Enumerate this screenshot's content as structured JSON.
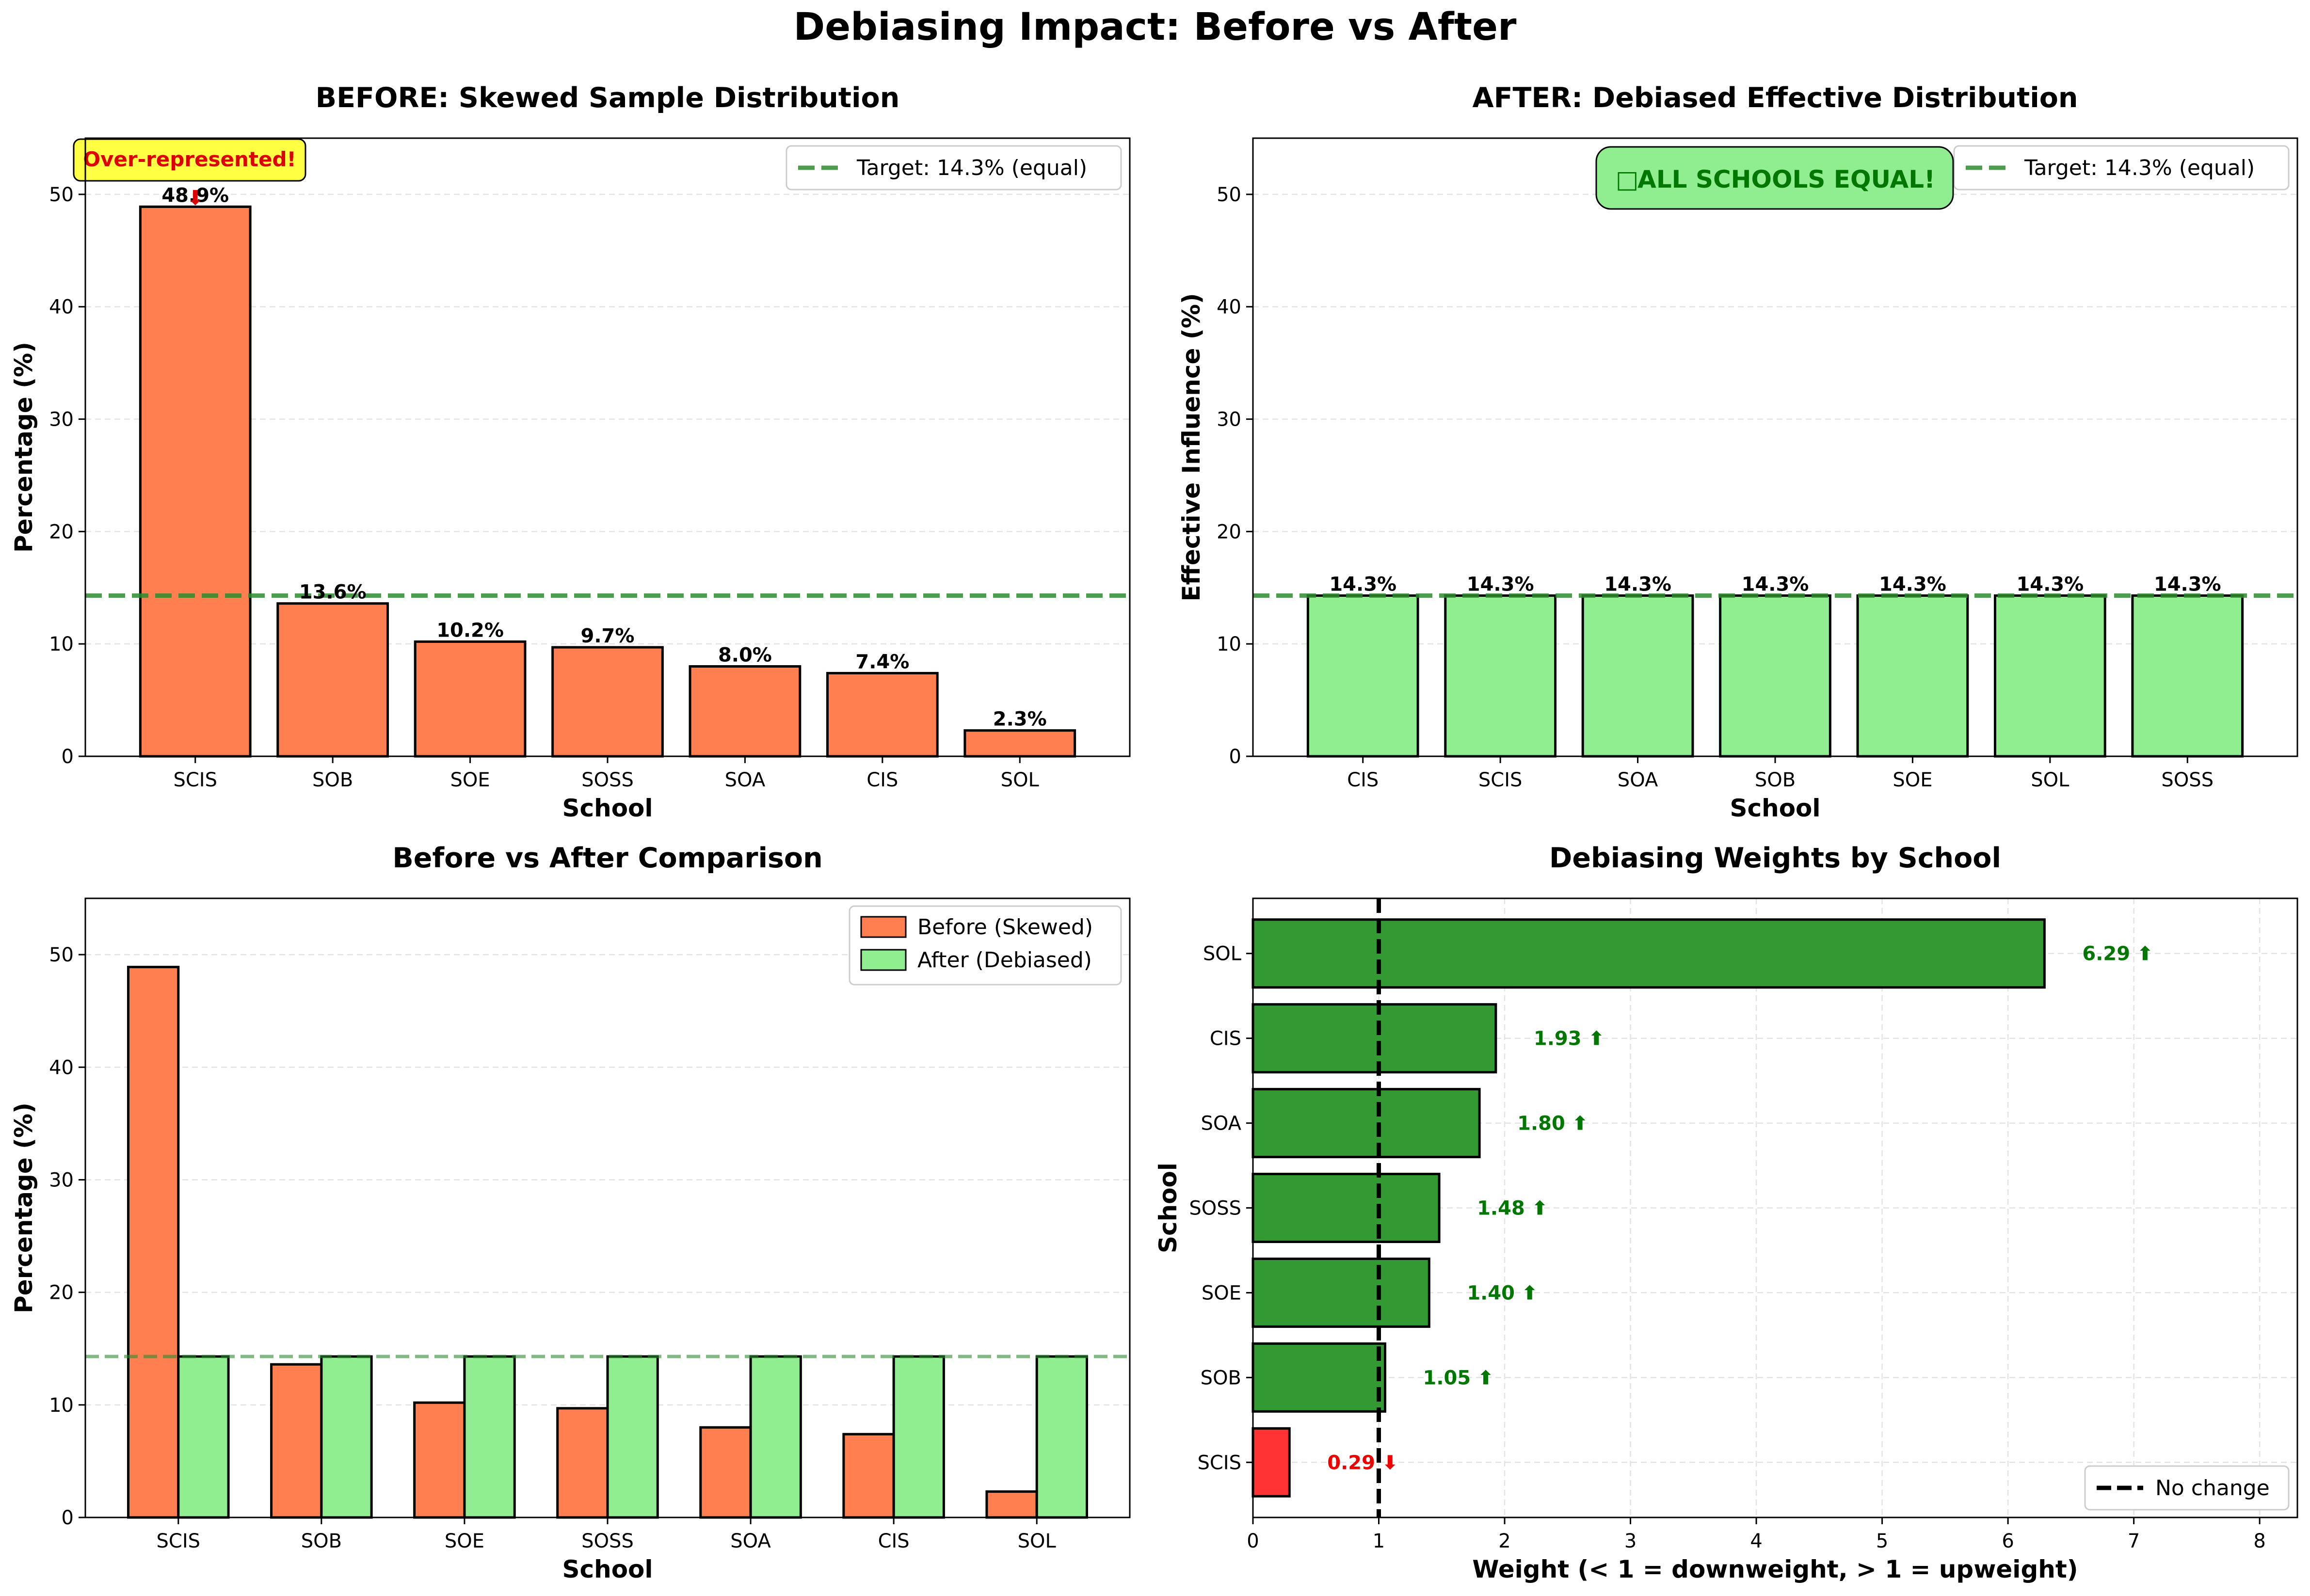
{
  "suptitle": "Debiasing Impact: Before vs After",
  "chart_data": [
    {
      "type": "bar",
      "title": "BEFORE: Skewed Sample Distribution",
      "xlabel": "School",
      "ylabel": "Percentage (%)",
      "ylim": [
        0,
        55
      ],
      "yticks": [
        0,
        10,
        20,
        30,
        40,
        50
      ],
      "categories": [
        "SCIS",
        "SOB",
        "SOE",
        "SOSS",
        "SOA",
        "CIS",
        "SOL"
      ],
      "values": [
        48.9,
        13.6,
        10.2,
        9.7,
        8.0,
        7.4,
        2.3
      ],
      "value_labels": [
        "48.9%",
        "13.6%",
        "10.2%",
        "9.7%",
        "8.0%",
        "7.4%",
        "2.3%"
      ],
      "bar_color": "#ff7f50",
      "target_line": {
        "value": 14.3,
        "label": "Target: 14.3% (equal)",
        "color": "#2e8b2e"
      },
      "legend_position": "top-right",
      "annotation": {
        "text": "Over-represented!",
        "arrow": "⬇",
        "points_to": "SCIS",
        "bg": "#ffff44",
        "color": "#dd0000"
      },
      "grid": "y-dashed"
    },
    {
      "type": "bar",
      "title": "AFTER: Debiased Effective Distribution",
      "xlabel": "School",
      "ylabel": "Effective Influence (%)",
      "ylim": [
        0,
        55
      ],
      "yticks": [
        0,
        10,
        20,
        30,
        40,
        50
      ],
      "categories": [
        "CIS",
        "SCIS",
        "SOA",
        "SOB",
        "SOE",
        "SOL",
        "SOSS"
      ],
      "values": [
        14.3,
        14.3,
        14.3,
        14.3,
        14.3,
        14.3,
        14.3
      ],
      "value_labels": [
        "14.3%",
        "14.3%",
        "14.3%",
        "14.3%",
        "14.3%",
        "14.3%",
        "14.3%"
      ],
      "bar_color": "#90ee90",
      "target_line": {
        "value": 14.3,
        "label": "Target: 14.3% (equal)",
        "color": "#2e8b2e"
      },
      "legend_position": "top-right",
      "badge": {
        "icon": "□",
        "text": "ALL SCHOOLS EQUAL!",
        "bg": "#90ee90",
        "color": "#007700"
      },
      "grid": "y-dashed"
    },
    {
      "type": "bar",
      "title": "Before vs After Comparison",
      "xlabel": "School",
      "ylabel": "Percentage (%)",
      "ylim": [
        0,
        55
      ],
      "yticks": [
        0,
        10,
        20,
        30,
        40,
        50
      ],
      "categories": [
        "SCIS",
        "SOB",
        "SOE",
        "SOSS",
        "SOA",
        "CIS",
        "SOL"
      ],
      "series": [
        {
          "name": "Before (Skewed)",
          "color": "#ff7f50",
          "values": [
            48.9,
            13.6,
            10.2,
            9.7,
            8.0,
            7.4,
            2.3
          ]
        },
        {
          "name": "After (Debiased)",
          "color": "#90ee90",
          "values": [
            14.3,
            14.3,
            14.3,
            14.3,
            14.3,
            14.3,
            14.3
          ]
        }
      ],
      "reference_line": 14.3,
      "legend_position": "top-right",
      "grid": "y-dashed"
    },
    {
      "type": "bar",
      "orientation": "horizontal",
      "title": "Debiasing Weights by School",
      "xlabel": "Weight (< 1 = downweight, > 1 = upweight)",
      "ylabel": "School",
      "xlim": [
        0,
        8.3
      ],
      "xticks": [
        0,
        1,
        2,
        3,
        4,
        5,
        6,
        7,
        8
      ],
      "categories": [
        "SCIS",
        "SOB",
        "SOE",
        "SOSS",
        "SOA",
        "CIS",
        "SOL"
      ],
      "values": [
        0.29,
        1.05,
        1.4,
        1.48,
        1.8,
        1.93,
        6.29
      ],
      "value_labels": [
        "0.29 ⬇",
        "1.05 ⬆",
        "1.40 ⬆",
        "1.48 ⬆",
        "1.80 ⬆",
        "1.93 ⬆",
        "6.29 ⬆"
      ],
      "colors": {
        "up": "#339933",
        "down": "#ff3333",
        "label_up": "#007700",
        "label_down": "#ee0000"
      },
      "reference_line": {
        "value": 1,
        "label": "No change"
      },
      "legend_position": "bottom-right",
      "grid": "both-dashed"
    }
  ]
}
